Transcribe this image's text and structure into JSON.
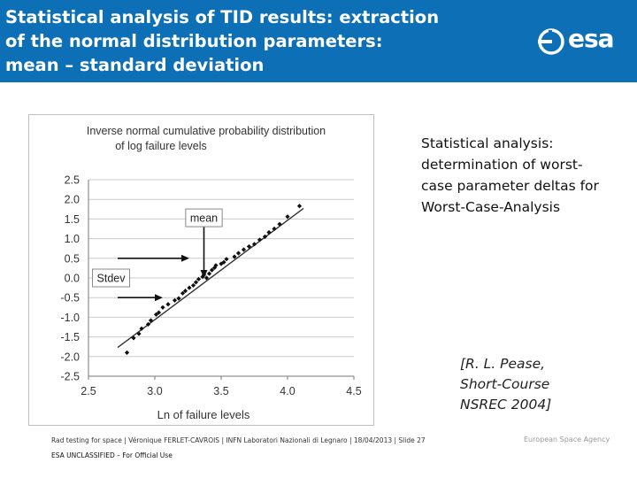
{
  "header": {
    "title_lines": [
      "Statistical analysis of TID results: extraction",
      "of the normal distribution parameters:",
      "mean – standard deviation"
    ],
    "logo_text": "esa",
    "background_color": "#0d6fb5"
  },
  "side_text": {
    "lines": [
      "Statistical analysis:",
      "determination of worst-",
      "case parameter deltas for",
      "Worst-Case-Analysis"
    ]
  },
  "reference": {
    "lines": [
      "[R. L. Pease,",
      "Short-Course",
      "NSREC 2004]"
    ]
  },
  "footer": {
    "text": "Rad testing for space | Véronique FERLET-CAVROIS | INFN Laboratori Nazionali di Legnaro | 18/04/2013 | Slide  27",
    "agency": "European Space Agency",
    "classification": "ESA UNCLASSIFIED – For Official Use"
  },
  "chart_data": {
    "type": "scatter",
    "title": [
      "Inverse normal cumulative probability distribution",
      "of log failure levels"
    ],
    "xlabel": "Ln of failure levels",
    "ylabel": "",
    "xlim": [
      2.5,
      4.5
    ],
    "ylim": [
      -2.5,
      2.5
    ],
    "xticks": [
      "2.5",
      "3.0",
      "3.5",
      "4.0",
      "4.5"
    ],
    "yticks": [
      "2.5",
      "2.0",
      "1.5",
      "1.0",
      "0.5",
      "0.0",
      "-0.5",
      "-1.0",
      "-1.5",
      "-2.0",
      "-2.5"
    ],
    "grid": "horizontal",
    "series": [
      {
        "x": [
          2.79,
          2.84,
          2.88,
          2.9,
          2.95,
          2.97,
          3.01,
          3.03,
          3.06,
          3.1,
          3.15,
          3.18,
          3.21,
          3.23,
          3.26,
          3.29,
          3.31,
          3.33,
          3.36,
          3.37,
          3.39,
          3.41,
          3.43,
          3.45,
          3.46,
          3.5,
          3.52,
          3.54,
          3.6,
          3.63,
          3.67,
          3.71,
          3.75,
          3.79,
          3.83,
          3.86,
          3.9,
          3.94,
          4.0,
          4.09
        ],
        "y": [
          -1.9,
          -1.53,
          -1.42,
          -1.29,
          -1.18,
          -1.08,
          -0.93,
          -0.88,
          -0.75,
          -0.67,
          -0.57,
          -0.52,
          -0.39,
          -0.33,
          -0.25,
          -0.19,
          -0.11,
          -0.03,
          0.03,
          0.08,
          0.0,
          0.11,
          0.2,
          0.26,
          0.32,
          0.36,
          0.4,
          0.48,
          0.54,
          0.63,
          0.72,
          0.8,
          0.86,
          0.97,
          1.05,
          1.16,
          1.25,
          1.37,
          1.56,
          1.83
        ]
      }
    ],
    "fit_line": {
      "x": [
        2.72,
        4.12
      ],
      "y": [
        -1.77,
        1.77
      ]
    },
    "annotations": [
      {
        "text": "mean",
        "x": 3.37,
        "y": 1.53
      },
      {
        "text": "Stdev",
        "x": 2.67,
        "y": 0.0
      }
    ],
    "arrows": [
      {
        "from": [
          2.72,
          0.5
        ],
        "to": [
          3.26,
          0.5
        ]
      },
      {
        "from": [
          2.72,
          -0.5
        ],
        "to": [
          3.06,
          -0.5
        ]
      },
      {
        "from": [
          3.37,
          1.3
        ],
        "to": [
          3.37,
          0.0
        ]
      }
    ],
    "colors": {
      "points": "#111111",
      "fit_line": "#333333",
      "grid": "#cccccc"
    }
  }
}
